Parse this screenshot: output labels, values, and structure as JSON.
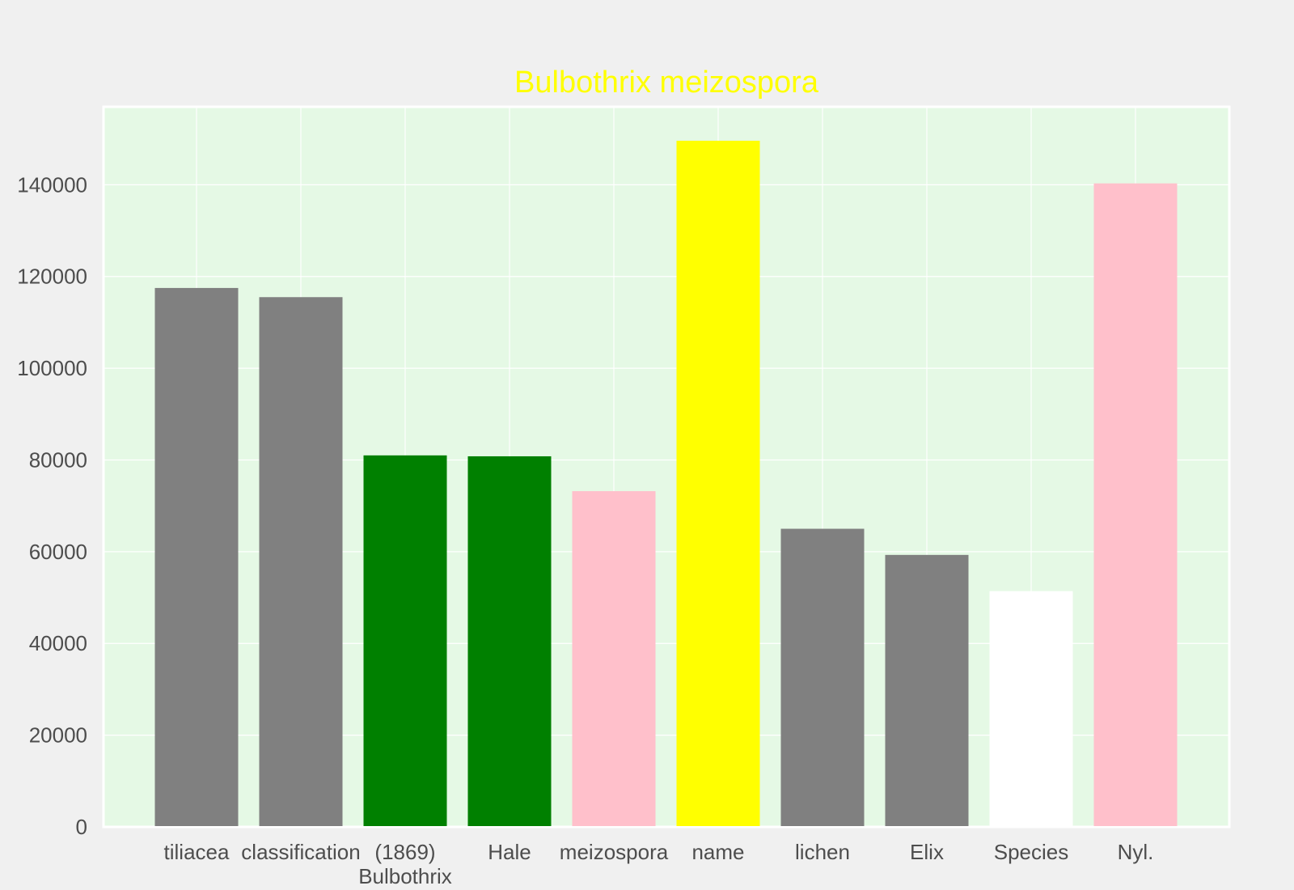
{
  "chart_data": {
    "type": "bar",
    "title": "Bulbothrix meizospora",
    "xlabel": "",
    "ylabel": "",
    "categories": [
      "tiliacea",
      "classification",
      "(1869)\nBulbothrix",
      "Hale",
      "meizospora",
      "name",
      "lichen",
      "Elix",
      "Species",
      "Nyl."
    ],
    "values": [
      117500,
      115500,
      81000,
      80800,
      73200,
      149600,
      65000,
      59300,
      51400,
      140300
    ],
    "bar_colors": [
      "#808080",
      "#808080",
      "#008000",
      "#008000",
      "#ffc0cb",
      "#ffff00",
      "#808080",
      "#808080",
      "#ffffff",
      "#ffc0cb"
    ],
    "ylim": [
      0,
      157000
    ],
    "yticks": [
      0,
      20000,
      40000,
      60000,
      80000,
      100000,
      120000,
      140000
    ],
    "grid": true,
    "legend": "none"
  },
  "colors": {
    "page_background": "#f0f0f0",
    "plot_background": "#e5f9e5",
    "grid": "#ffffff",
    "title": "#ffff00",
    "tick_text": "#4d4d4d"
  }
}
